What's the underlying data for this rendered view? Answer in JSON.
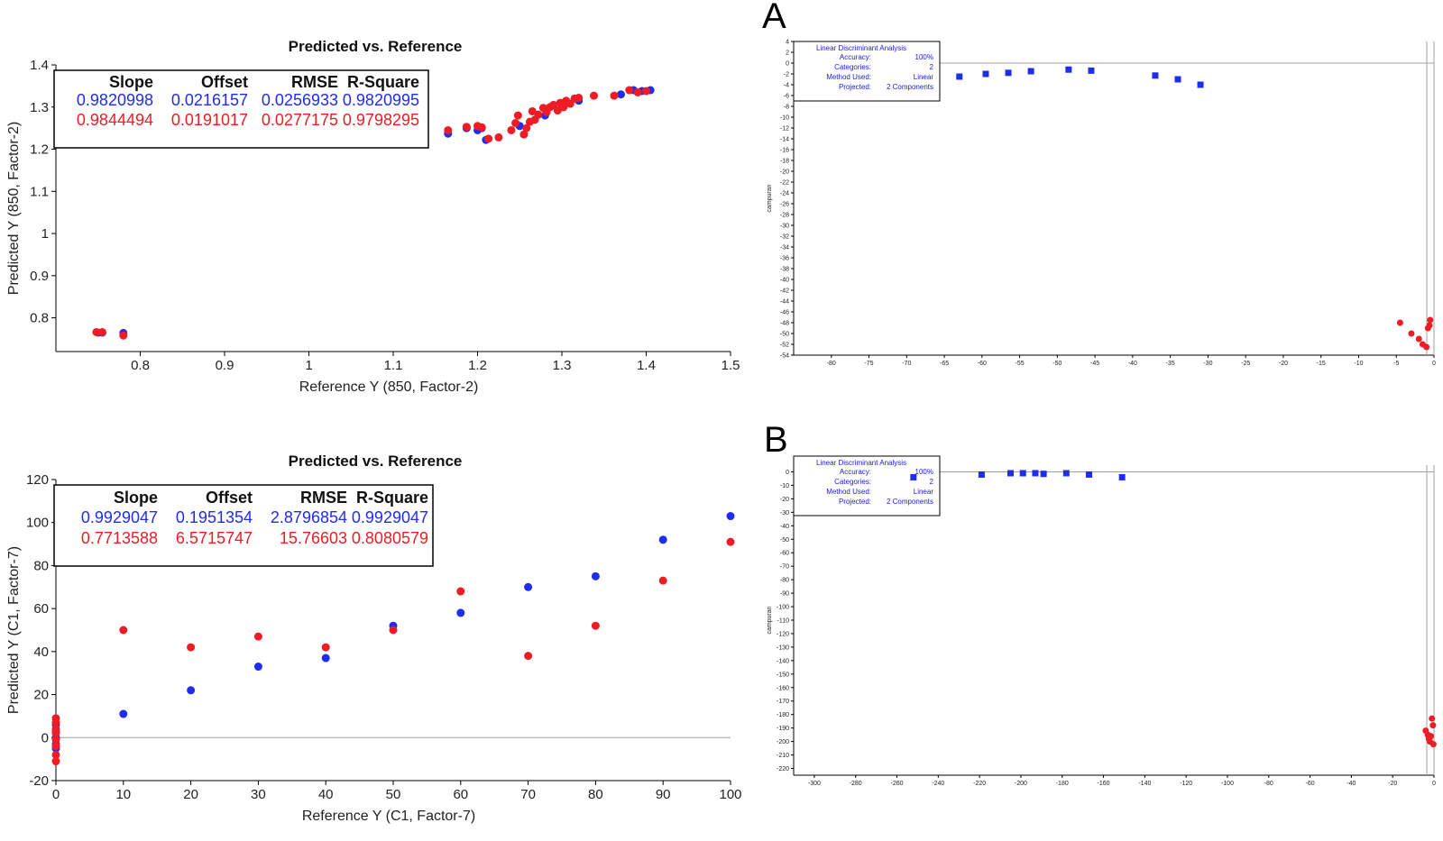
{
  "panel_labels": {
    "a": "A",
    "b": "B"
  },
  "colors": {
    "blue": "#1f2df0",
    "red": "#ee1c25",
    "axis": "#000000",
    "zero": "#a0a0a0"
  },
  "chart_data": [
    {
      "id": "tl",
      "type": "scatter",
      "title": "Predicted vs. Reference",
      "xlabel": "Reference Y (850, Factor-2)",
      "ylabel": "Predicted Y (850, Factor-2)",
      "xlim": [
        0.7,
        1.5
      ],
      "ylim": [
        0.72,
        1.4
      ],
      "xticks": [
        "0.8",
        "0.9",
        "1",
        "1.1",
        "1.2",
        "1.3",
        "1.4",
        "1.5"
      ],
      "yticks": [
        "0.8",
        "0.9",
        "1",
        "1.1",
        "1.2",
        "1.3",
        "1.4"
      ],
      "stats": {
        "headers": [
          "Slope",
          "Offset",
          "RMSE",
          "R-Square"
        ],
        "rows": [
          {
            "color": "blue",
            "values": [
              "0.9820998",
              "0.0216157",
              "0.0256933",
              "0.9820995"
            ]
          },
          {
            "color": "red",
            "values": [
              "0.9844494",
              "0.0191017",
              "0.0277175",
              "0.9798295"
            ]
          }
        ]
      },
      "series": [
        {
          "color": "blue",
          "points": [
            [
              0.75,
              0.765
            ],
            [
              0.755,
              0.765
            ],
            [
              0.78,
              0.764
            ],
            [
              1.165,
              1.237
            ],
            [
              1.187,
              1.25
            ],
            [
              1.2,
              1.245
            ],
            [
              1.205,
              1.25
            ],
            [
              1.21,
              1.222
            ],
            [
              1.25,
              1.255
            ],
            [
              1.28,
              1.28
            ],
            [
              1.3,
              1.3
            ],
            [
              1.32,
              1.315
            ],
            [
              1.37,
              1.33
            ],
            [
              1.385,
              1.34
            ],
            [
              1.395,
              1.338
            ],
            [
              1.405,
              1.34
            ]
          ]
        },
        {
          "color": "red",
          "points": [
            [
              0.748,
              0.766
            ],
            [
              0.755,
              0.766
            ],
            [
              0.78,
              0.758
            ],
            [
              1.165,
              1.245
            ],
            [
              1.187,
              1.253
            ],
            [
              1.2,
              1.255
            ],
            [
              1.205,
              1.252
            ],
            [
              1.213,
              1.225
            ],
            [
              1.225,
              1.228
            ],
            [
              1.24,
              1.245
            ],
            [
              1.245,
              1.262
            ],
            [
              1.248,
              1.28
            ],
            [
              1.255,
              1.235
            ],
            [
              1.258,
              1.25
            ],
            [
              1.262,
              1.265
            ],
            [
              1.265,
              1.29
            ],
            [
              1.268,
              1.27
            ],
            [
              1.272,
              1.282
            ],
            [
              1.278,
              1.298
            ],
            [
              1.282,
              1.288
            ],
            [
              1.286,
              1.3
            ],
            [
              1.29,
              1.305
            ],
            [
              1.295,
              1.292
            ],
            [
              1.298,
              1.31
            ],
            [
              1.302,
              1.3
            ],
            [
              1.305,
              1.315
            ],
            [
              1.31,
              1.308
            ],
            [
              1.315,
              1.32
            ],
            [
              1.32,
              1.322
            ],
            [
              1.338,
              1.327
            ],
            [
              1.362,
              1.327
            ],
            [
              1.38,
              1.34
            ],
            [
              1.39,
              1.335
            ],
            [
              1.4,
              1.338
            ]
          ]
        }
      ]
    },
    {
      "id": "bl",
      "type": "scatter",
      "title": "Predicted vs. Reference",
      "xlabel": "Reference Y (C1, Factor-7)",
      "ylabel": "Predicted Y (C1, Factor-7)",
      "xlim": [
        0,
        100
      ],
      "ylim": [
        -20,
        120
      ],
      "xticks": [
        "0",
        "10",
        "20",
        "30",
        "40",
        "50",
        "60",
        "70",
        "80",
        "90",
        "100"
      ],
      "yticks": [
        "-20",
        "0",
        "20",
        "40",
        "60",
        "80",
        "100",
        "120"
      ],
      "stats": {
        "headers": [
          "Slope",
          "Offset",
          "RMSE",
          "R-Square"
        ],
        "rows": [
          {
            "color": "blue",
            "values": [
              "0.9929047",
              "0.1951354",
              "2.8796854",
              "0.9929047"
            ]
          },
          {
            "color": "red",
            "values": [
              "0.7713588",
              "6.5715747",
              "15.76603",
              "0.8080579"
            ]
          }
        ]
      },
      "series": [
        {
          "color": "blue",
          "points": [
            [
              0,
              6
            ],
            [
              0,
              3
            ],
            [
              0,
              0
            ],
            [
              0,
              -3
            ],
            [
              0,
              -5
            ],
            [
              10,
              11
            ],
            [
              20,
              22
            ],
            [
              30,
              33
            ],
            [
              40,
              37
            ],
            [
              50,
              52
            ],
            [
              60,
              58
            ],
            [
              70,
              70
            ],
            [
              80,
              75
            ],
            [
              90,
              92
            ],
            [
              100,
              103
            ]
          ]
        },
        {
          "color": "red",
          "points": [
            [
              0,
              9
            ],
            [
              0,
              7
            ],
            [
              0,
              4
            ],
            [
              0,
              2
            ],
            [
              0,
              -1
            ],
            [
              0,
              -4
            ],
            [
              0,
              -8
            ],
            [
              0,
              -11
            ],
            [
              10,
              50
            ],
            [
              20,
              42
            ],
            [
              30,
              47
            ],
            [
              40,
              42
            ],
            [
              50,
              50
            ],
            [
              60,
              68
            ],
            [
              70,
              38
            ],
            [
              80,
              52
            ],
            [
              90,
              73
            ],
            [
              100,
              91
            ]
          ]
        }
      ]
    },
    {
      "id": "a",
      "type": "scatter",
      "title": "",
      "xlabel": "",
      "ylabel": "campuran",
      "xlim": [
        -85,
        0
      ],
      "ylim": [
        -54,
        4
      ],
      "xticks": [
        "-80",
        "-75",
        "-70",
        "-65",
        "-60",
        "-55",
        "-50",
        "-45",
        "-40",
        "-35",
        "-30",
        "-25",
        "-20",
        "-15",
        "-10",
        "-5",
        "0"
      ],
      "yticks": [
        "4",
        "2",
        "0",
        "-2",
        "-4",
        "-6",
        "-8",
        "-10",
        "-12",
        "-14",
        "-16",
        "-18",
        "-20",
        "-22",
        "-24",
        "-26",
        "-28",
        "-30",
        "-32",
        "-34",
        "-36",
        "-38",
        "-40",
        "-42",
        "-44",
        "-46",
        "-48",
        "-50",
        "-52",
        "-54"
      ],
      "legend": {
        "title": "Linear Discriminant Analysis",
        "rows": [
          [
            "Accuracy:",
            "100%"
          ],
          [
            "Categories:",
            "2"
          ],
          [
            "Method Used:",
            "Linear"
          ],
          [
            "Projected:",
            "2 Components"
          ]
        ]
      },
      "series": [
        {
          "color": "blue",
          "points": [
            [
              -63,
              -2.5
            ],
            [
              -59.5,
              -2
            ],
            [
              -56.5,
              -1.8
            ],
            [
              -53.5,
              -1.5
            ],
            [
              -48.5,
              -1.2
            ],
            [
              -45.5,
              -1.4
            ],
            [
              -37,
              -2.3
            ],
            [
              -34,
              -3
            ],
            [
              -31,
              -4
            ]
          ]
        },
        {
          "color": "red",
          "points": [
            [
              -4.5,
              -48
            ],
            [
              -3,
              -50
            ],
            [
              -2,
              -51
            ],
            [
              -1.5,
              -52
            ],
            [
              -1,
              -52.5
            ],
            [
              -0.8,
              -49
            ],
            [
              -0.6,
              -48.5
            ],
            [
              -0.5,
              -47.5
            ]
          ]
        }
      ]
    },
    {
      "id": "b",
      "type": "scatter",
      "title": "",
      "xlabel": "",
      "ylabel": "campuran",
      "xlim": [
        -310,
        0
      ],
      "ylim": [
        -225,
        5
      ],
      "xticks": [
        "-300",
        "-280",
        "-260",
        "-240",
        "-220",
        "-200",
        "-180",
        "-160",
        "-140",
        "-120",
        "-100",
        "-80",
        "-60",
        "-40",
        "-20",
        "0"
      ],
      "yticks": [
        "0",
        "-10",
        "-20",
        "-30",
        "-40",
        "-50",
        "-60",
        "-70",
        "-80",
        "-90",
        "-100",
        "-110",
        "-120",
        "-130",
        "-140",
        "-150",
        "-160",
        "-170",
        "-180",
        "-190",
        "-200",
        "-210",
        "-220"
      ],
      "legend": {
        "title": "Linear Discriminant Analysis",
        "rows": [
          [
            "Accuracy:",
            "100%"
          ],
          [
            "Categories:",
            "2"
          ],
          [
            "Method Used:",
            "Linear"
          ],
          [
            "Projected:",
            "2 Components"
          ]
        ]
      },
      "series": [
        {
          "color": "blue",
          "points": [
            [
              -252,
              -4
            ],
            [
              -219,
              -2
            ],
            [
              -205,
              -1
            ],
            [
              -199,
              -1
            ],
            [
              -193,
              -1
            ],
            [
              -189,
              -1.5
            ],
            [
              -178,
              -1
            ],
            [
              -167,
              -2
            ],
            [
              -151,
              -4
            ]
          ]
        },
        {
          "color": "red",
          "points": [
            [
              -4,
              -192
            ],
            [
              -3,
              -195
            ],
            [
              -2.5,
              -198
            ],
            [
              -2,
              -200
            ],
            [
              -1.5,
              -196
            ],
            [
              -1,
              -183
            ],
            [
              -0.5,
              -188
            ],
            [
              -0.3,
              -202
            ]
          ]
        }
      ]
    }
  ]
}
